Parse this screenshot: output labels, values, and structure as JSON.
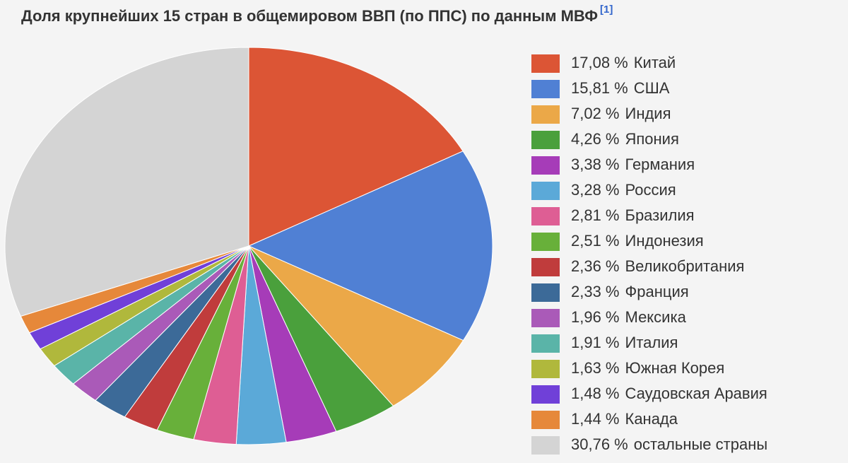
{
  "chart_data": {
    "type": "pie",
    "title": "Доля крупнейших 15 стран в общемировом ВВП (по ППС) по данным МВФ",
    "title_note": "[1]",
    "categories": [
      "Китай",
      "США",
      "Индия",
      "Япония",
      "Германия",
      "Россия",
      "Бразилия",
      "Индонезия",
      "Великобритания",
      "Франция",
      "Мексика",
      "Италия",
      "Южная Корея",
      "Саудовская Аравия",
      "Канада",
      "остальные страны"
    ],
    "values": [
      17.08,
      15.81,
      7.02,
      4.26,
      3.38,
      3.28,
      2.81,
      2.51,
      2.36,
      2.33,
      1.96,
      1.91,
      1.63,
      1.48,
      1.44,
      30.76
    ],
    "value_labels": [
      "17,08 %",
      "15,81 %",
      "7,02 %",
      "4,26 %",
      "3,38 %",
      "3,28 %",
      "2,81 %",
      "2,51 %",
      "2,36 %",
      "2,33 %",
      "1,96 %",
      "1,91 %",
      "1,63 %",
      "1,48 %",
      "1,44 %",
      "30,76 %"
    ],
    "colors": [
      "#dc5535",
      "#5080d4",
      "#eba848",
      "#4aa03c",
      "#a63cb8",
      "#5ba9d8",
      "#de5e94",
      "#68b03a",
      "#c03c3c",
      "#3c6a98",
      "#aa5ab8",
      "#5ab4a8",
      "#b0b83c",
      "#7040d8",
      "#e6883a",
      "#d4d4d4"
    ],
    "legend": "right"
  }
}
